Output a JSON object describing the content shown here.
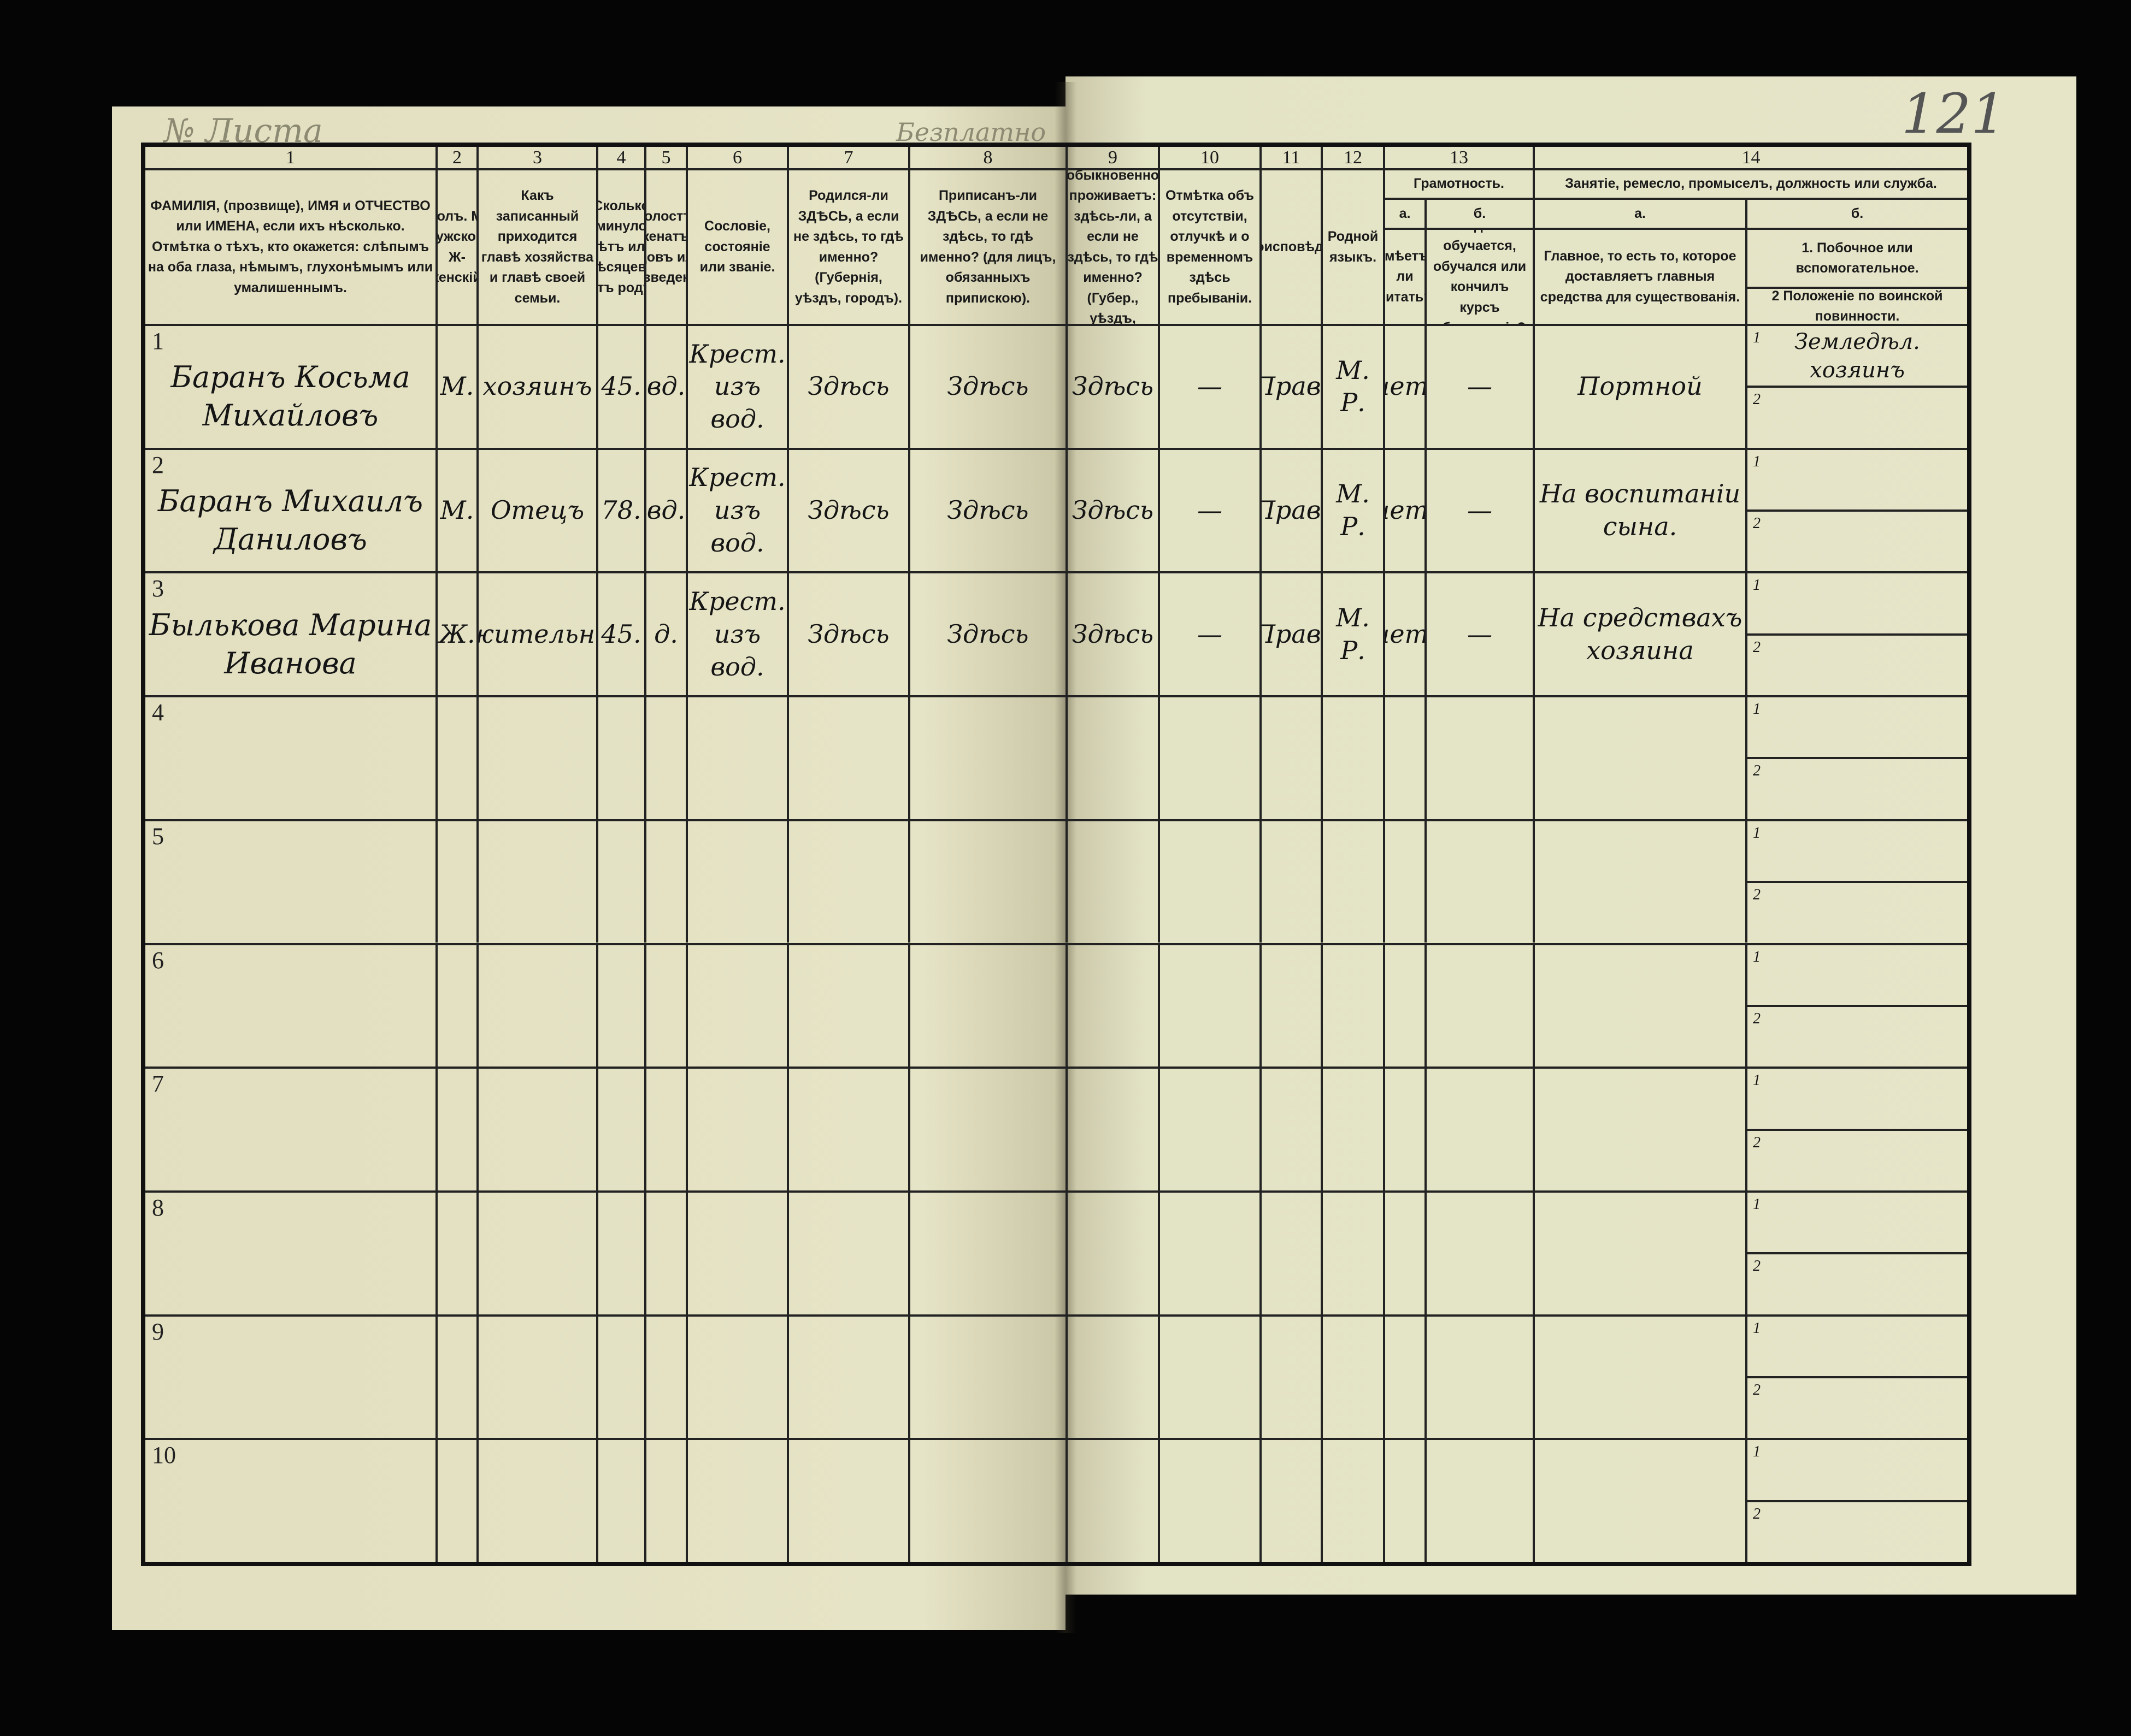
{
  "document": {
    "top_stamp_left": "№ Листа",
    "top_stamp_center": "Безплатно",
    "page_number": "121"
  },
  "headers": [
    {
      "num": "1",
      "text": "ФАМИЛІЯ, (прозвище), ИМЯ и ОТЧЕСТВО или ИМЕНА, если ихъ нѣсколько. Отмѣтка о тѣхъ, кто окажется: слѣпымъ на оба глаза, нѣмымъ, глухонѣмымъ или умалишеннымъ."
    },
    {
      "num": "2",
      "text": "Полъ. М-мужской. Ж-женскій."
    },
    {
      "num": "3",
      "text": "Какъ записанный приходится главѣ хозяйства и главѣ своей семьи."
    },
    {
      "num": "4",
      "text": "Сколько минуло лѣтъ или мѣсяцевъ отъ роду."
    },
    {
      "num": "5",
      "text": "Холостъ, женатъ, вдовъ или разведенъ."
    },
    {
      "num": "6",
      "text": "Сословіе, состояніе или званіе."
    },
    {
      "num": "7",
      "text": "Родился-ли ЗДѢСЬ, а если не здѣсь, то гдѣ именно? (Губернія, уѣздъ, городъ)."
    },
    {
      "num": "8",
      "text": "Приписанъ-ли ЗДѢСЬ, а если не здѣсь, то гдѣ именно? (для лицъ, обязанныхъ припискою)."
    },
    {
      "num": "9",
      "text": "Гдѣ обыкновенно проживаетъ: здѣсь-ли, а если не здѣсь, то гдѣ именно? (Губер., уѣздъ, городъ)."
    },
    {
      "num": "10",
      "text": "Отмѣтка объ отсутствіи, отлучкѣ и о временномъ здѣсь пребываніи."
    },
    {
      "num": "11",
      "text": "Вѣроисповѣданіе."
    },
    {
      "num": "12",
      "text": "Родной языкъ."
    }
  ],
  "group13": {
    "num": "13",
    "title": "Грамотность.",
    "a_label": "а.",
    "a_text": "Умѣетъ-ли читать?",
    "b_label": "б.",
    "b_text": "Гдѣ обучается, обучался или кончилъ курсъ образованія?"
  },
  "group14": {
    "num": "14",
    "title": "Занятіе, ремесло, промыселъ, должность или служба.",
    "a_label": "а.",
    "a_text": "Главное, то есть то, которое доставляетъ главныя средства для существованія.",
    "b_label": "б.",
    "b1_text": "1. Побочное или вспомогательное.",
    "b2_text": "2 Положеніе по воинской повинности."
  },
  "rows": [
    {
      "n": "1",
      "c1": "Баранъ Косьма Михайловъ",
      "c2": "М.",
      "c3": "хозяинъ",
      "c4": "45.",
      "c5": "вд.",
      "c6": "Крест. изъ вод.",
      "c7": "Здѣсь",
      "c8": "Здѣсь",
      "c9": "Здѣсь",
      "c10": "—",
      "c11": "Прав.",
      "c12": "М. Р.",
      "c13a": "нет.",
      "c13b": "—",
      "c14a": "Портной",
      "b1n": "1",
      "b1": "Земледѣл. хозяинъ",
      "b2n": "2",
      "b2": ""
    },
    {
      "n": "2",
      "c1": "Баранъ Михаилъ Даниловъ",
      "c2": "М.",
      "c3": "Отецъ",
      "c4": "78.",
      "c5": "вд.",
      "c6": "Крест. изъ вод.",
      "c7": "Здѣсь",
      "c8": "Здѣсь",
      "c9": "Здѣсь",
      "c10": "—",
      "c11": "Прав.",
      "c12": "М. Р.",
      "c13a": "нет.",
      "c13b": "—",
      "c14a": "На воспитаніи сына.",
      "b1n": "1",
      "b1": "",
      "b2n": "2",
      "b2": ""
    },
    {
      "n": "3",
      "c1": "Былькова Марина Иванова",
      "c2": "Ж.",
      "c3": "Сожительница",
      "c4": "45.",
      "c5": "д.",
      "c6": "Крест. изъ вод.",
      "c7": "Здѣсь",
      "c8": "Здѣсь",
      "c9": "Здѣсь",
      "c10": "—",
      "c11": "Прав.",
      "c12": "М. Р.",
      "c13a": "нет.",
      "c13b": "—",
      "c14a": "На средствахъ хозяина",
      "b1n": "1",
      "b1": "",
      "b2n": "2",
      "b2": ""
    },
    {
      "n": "4",
      "b1n": "1",
      "b2n": "2"
    },
    {
      "n": "5",
      "b1n": "1",
      "b2n": "2"
    },
    {
      "n": "6",
      "b1n": "1",
      "b2n": "2"
    },
    {
      "n": "7",
      "b1n": "1",
      "b2n": "2"
    },
    {
      "n": "8",
      "b1n": "1",
      "b2n": "2"
    },
    {
      "n": "9",
      "b1n": "1",
      "b2n": "2"
    },
    {
      "n": "10",
      "b1n": "1",
      "b2n": "2"
    }
  ]
}
